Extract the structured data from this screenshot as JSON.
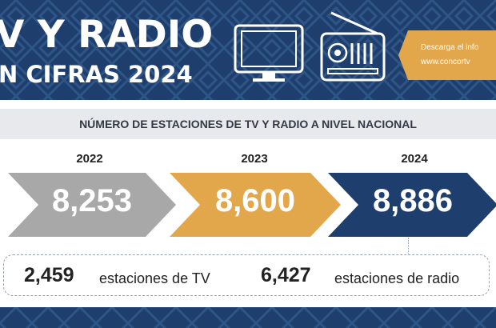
{
  "header": {
    "title_line1": "V Y RADIO",
    "title_line2": "N CIFRAS 2024",
    "icons": [
      "tv-icon",
      "radio-icon"
    ],
    "cta_line1": "Descarga el info",
    "cta_line2": "www.concortv"
  },
  "section_title": "NÚMERO DE ESTACIONES DE TV Y RADIO A NIVEL NACIONAL",
  "years": [
    {
      "year": "2022",
      "value": "8,253"
    },
    {
      "year": "2023",
      "value": "8,600"
    },
    {
      "year": "2024",
      "value": "8,886"
    }
  ],
  "breakdown": {
    "tv_value": "2,459",
    "tv_label": "estaciones de TV",
    "radio_value": "6,427",
    "radio_label": "estaciones de radio"
  },
  "colors": {
    "navy": "#1e3f6e",
    "orange": "#e3a74b",
    "gray": "#a8a8a8"
  }
}
